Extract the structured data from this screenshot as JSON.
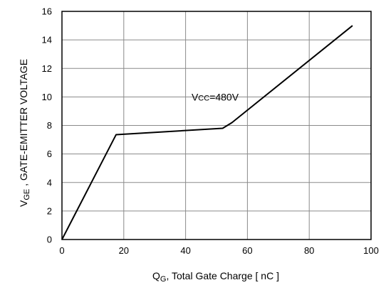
{
  "chart_data": {
    "type": "line",
    "xlabel": {
      "main": "Q",
      "sub": "G",
      "rest": ", Total Gate Charge [ nC ]"
    },
    "ylabel": {
      "main": "V",
      "sub": "GE",
      "rest": " , GATE-EMITTER VOLTAGE"
    },
    "xlim": [
      0,
      100
    ],
    "ylim": [
      0,
      16
    ],
    "xticks": [
      0,
      20,
      40,
      60,
      80,
      100
    ],
    "yticks": [
      0,
      2,
      4,
      6,
      8,
      10,
      12,
      14,
      16
    ],
    "grid": true,
    "annotation": {
      "main": "V",
      "sub": "CC",
      "rest": "=480V",
      "x": 44,
      "y": 10
    },
    "series": [
      {
        "color": "#000000",
        "points": [
          [
            0,
            0
          ],
          [
            17.5,
            7.35
          ],
          [
            52,
            7.8
          ],
          [
            55,
            8.2
          ],
          [
            94,
            15
          ]
        ]
      }
    ]
  }
}
